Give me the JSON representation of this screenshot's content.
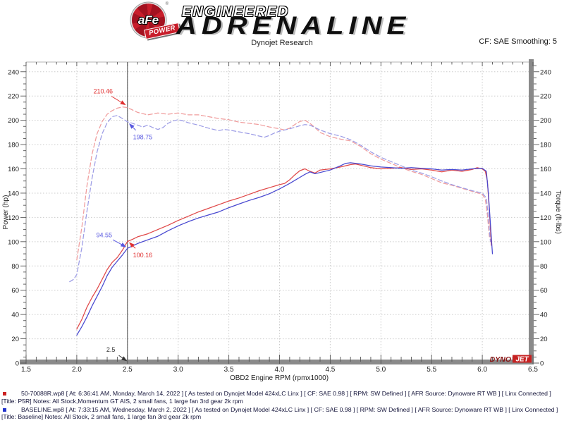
{
  "header": {
    "logo": {
      "circle_text": "aFe",
      "registered": "®",
      "banner_text": "POWER"
    },
    "title_line1": "ENGINEERED",
    "title_line2": "ADRENALINE",
    "subtitle": "Dynojet Research",
    "smoothing": "CF: SAE Smoothing: 5"
  },
  "chart_data": {
    "type": "line",
    "title": "",
    "xlabel": "OBD2 Engine RPM (rpmx1000)",
    "ylabel_left": "Power (hp)",
    "ylabel_right": "Torque (ft-lbs)",
    "xlim": [
      1.5,
      6.5
    ],
    "ylim": [
      0,
      248
    ],
    "x_tick_major": 0.5,
    "x_tick_minor": 0.1,
    "y_tick_major": 20,
    "y_tick_minor": 5,
    "grid": true,
    "legend_position": "bottom",
    "cursor_x": 2.5,
    "watermark_dyno": "DYNO",
    "watermark_jet": "JET",
    "series": [
      {
        "id": "p5r-torque",
        "name": "50-70088R (P5R) Torque",
        "axis": "torque",
        "color": "#f09d9d",
        "dashed": true,
        "points": [
          [
            2.0,
            85
          ],
          [
            2.05,
            112
          ],
          [
            2.1,
            146
          ],
          [
            2.15,
            172
          ],
          [
            2.2,
            189
          ],
          [
            2.25,
            199
          ],
          [
            2.3,
            205
          ],
          [
            2.35,
            208
          ],
          [
            2.4,
            210
          ],
          [
            2.45,
            211
          ],
          [
            2.5,
            210.46
          ],
          [
            2.55,
            208.5
          ],
          [
            2.6,
            206.5
          ],
          [
            2.7,
            204.5
          ],
          [
            2.8,
            206
          ],
          [
            2.9,
            205
          ],
          [
            3.0,
            206
          ],
          [
            3.1,
            204.5
          ],
          [
            3.2,
            204.5
          ],
          [
            3.3,
            203
          ],
          [
            3.4,
            201.5
          ],
          [
            3.5,
            200.5
          ],
          [
            3.6,
            198.5
          ],
          [
            3.7,
            197.5
          ],
          [
            3.8,
            196.5
          ],
          [
            3.9,
            194.5
          ],
          [
            4.0,
            193
          ],
          [
            4.05,
            192
          ],
          [
            4.1,
            193.5
          ],
          [
            4.15,
            196.5
          ],
          [
            4.2,
            199
          ],
          [
            4.25,
            200
          ],
          [
            4.3,
            197.5
          ],
          [
            4.35,
            194
          ],
          [
            4.4,
            190
          ],
          [
            4.5,
            186.5
          ],
          [
            4.6,
            184.5
          ],
          [
            4.7,
            183
          ],
          [
            4.8,
            178.5
          ],
          [
            4.9,
            172.5
          ],
          [
            5.0,
            168
          ],
          [
            5.1,
            164.5
          ],
          [
            5.2,
            161
          ],
          [
            5.3,
            158
          ],
          [
            5.4,
            155.5
          ],
          [
            5.5,
            152
          ],
          [
            5.6,
            148.5
          ],
          [
            5.7,
            146.5
          ],
          [
            5.8,
            144
          ],
          [
            5.9,
            141.5
          ],
          [
            6.0,
            139
          ],
          [
            6.03,
            135
          ],
          [
            6.05,
            122
          ],
          [
            6.07,
            104
          ]
        ]
      },
      {
        "id": "baseline-torque",
        "name": "BASELINE Torque",
        "axis": "torque",
        "color": "#9d9de6",
        "dashed": true,
        "points": [
          [
            1.93,
            67
          ],
          [
            1.97,
            69
          ],
          [
            2.0,
            73
          ],
          [
            2.05,
            95
          ],
          [
            2.1,
            125
          ],
          [
            2.15,
            152
          ],
          [
            2.2,
            174
          ],
          [
            2.25,
            189
          ],
          [
            2.3,
            198
          ],
          [
            2.35,
            203
          ],
          [
            2.4,
            204
          ],
          [
            2.45,
            201.5
          ],
          [
            2.5,
            198.75
          ],
          [
            2.55,
            197.5
          ],
          [
            2.6,
            196
          ],
          [
            2.65,
            194.5
          ],
          [
            2.7,
            196
          ],
          [
            2.75,
            194
          ],
          [
            2.8,
            192.5
          ],
          [
            2.85,
            194
          ],
          [
            2.9,
            197.5
          ],
          [
            2.95,
            199.5
          ],
          [
            3.0,
            200.5
          ],
          [
            3.05,
            199.5
          ],
          [
            3.1,
            198
          ],
          [
            3.2,
            196
          ],
          [
            3.3,
            193.5
          ],
          [
            3.4,
            191.5
          ],
          [
            3.45,
            192.5
          ],
          [
            3.5,
            192
          ],
          [
            3.6,
            190.5
          ],
          [
            3.7,
            189
          ],
          [
            3.8,
            187
          ],
          [
            3.85,
            186
          ],
          [
            3.9,
            187.5
          ],
          [
            3.95,
            189.5
          ],
          [
            4.0,
            191
          ],
          [
            4.1,
            193
          ],
          [
            4.2,
            195.5
          ],
          [
            4.25,
            196.5
          ],
          [
            4.3,
            196
          ],
          [
            4.4,
            192
          ],
          [
            4.5,
            189
          ],
          [
            4.6,
            187
          ],
          [
            4.7,
            184
          ],
          [
            4.8,
            179.5
          ],
          [
            4.9,
            174
          ],
          [
            5.0,
            169.5
          ],
          [
            5.1,
            166
          ],
          [
            5.2,
            162.5
          ],
          [
            5.3,
            159
          ],
          [
            5.4,
            156.5
          ],
          [
            5.5,
            153.5
          ],
          [
            5.6,
            150
          ],
          [
            5.7,
            147
          ],
          [
            5.8,
            144.5
          ],
          [
            5.9,
            142
          ],
          [
            6.0,
            140
          ],
          [
            6.04,
            136
          ],
          [
            6.06,
            120
          ],
          [
            6.08,
            100
          ]
        ]
      },
      {
        "id": "p5r-power",
        "name": "50-70088R (P5R) Power",
        "axis": "power",
        "color": "#e04848",
        "dashed": false,
        "points": [
          [
            2.0,
            28
          ],
          [
            2.05,
            36
          ],
          [
            2.1,
            46
          ],
          [
            2.15,
            54
          ],
          [
            2.2,
            61
          ],
          [
            2.25,
            69
          ],
          [
            2.3,
            77
          ],
          [
            2.35,
            83
          ],
          [
            2.4,
            87
          ],
          [
            2.45,
            93
          ],
          [
            2.5,
            100.16
          ],
          [
            2.55,
            102
          ],
          [
            2.6,
            104
          ],
          [
            2.7,
            106.5
          ],
          [
            2.8,
            110
          ],
          [
            2.9,
            113.5
          ],
          [
            3.0,
            117.5
          ],
          [
            3.1,
            121
          ],
          [
            3.2,
            124.5
          ],
          [
            3.3,
            127.5
          ],
          [
            3.4,
            130.5
          ],
          [
            3.5,
            133.5
          ],
          [
            3.6,
            136
          ],
          [
            3.7,
            139
          ],
          [
            3.8,
            142
          ],
          [
            3.9,
            144.5
          ],
          [
            4.0,
            147
          ],
          [
            4.05,
            148
          ],
          [
            4.1,
            151
          ],
          [
            4.15,
            155
          ],
          [
            4.2,
            158.5
          ],
          [
            4.25,
            160
          ],
          [
            4.3,
            158
          ],
          [
            4.35,
            156.5
          ],
          [
            4.4,
            159
          ],
          [
            4.5,
            160
          ],
          [
            4.6,
            161.5
          ],
          [
            4.7,
            163.5
          ],
          [
            4.75,
            164
          ],
          [
            4.8,
            163
          ],
          [
            4.9,
            161
          ],
          [
            5.0,
            160
          ],
          [
            5.1,
            160.5
          ],
          [
            5.2,
            161
          ],
          [
            5.3,
            159.5
          ],
          [
            5.4,
            160
          ],
          [
            5.5,
            159
          ],
          [
            5.6,
            157.5
          ],
          [
            5.7,
            159
          ],
          [
            5.8,
            158
          ],
          [
            5.9,
            159.5
          ],
          [
            5.95,
            161
          ],
          [
            6.0,
            160
          ],
          [
            6.03,
            158
          ],
          [
            6.05,
            150
          ],
          [
            6.07,
            125
          ],
          [
            6.09,
            97
          ]
        ]
      },
      {
        "id": "baseline-power",
        "name": "BASELINE Power",
        "axis": "power",
        "color": "#4848d0",
        "dashed": false,
        "points": [
          [
            2.0,
            23
          ],
          [
            2.05,
            30
          ],
          [
            2.1,
            38
          ],
          [
            2.15,
            47
          ],
          [
            2.2,
            55
          ],
          [
            2.25,
            63
          ],
          [
            2.3,
            72
          ],
          [
            2.35,
            79
          ],
          [
            2.4,
            84
          ],
          [
            2.45,
            89
          ],
          [
            2.5,
            94.55
          ],
          [
            2.55,
            96.5
          ],
          [
            2.6,
            98.5
          ],
          [
            2.7,
            101.5
          ],
          [
            2.8,
            104.5
          ],
          [
            2.9,
            109
          ],
          [
            3.0,
            113
          ],
          [
            3.1,
            116.5
          ],
          [
            3.2,
            119.5
          ],
          [
            3.3,
            122
          ],
          [
            3.4,
            124.5
          ],
          [
            3.5,
            128
          ],
          [
            3.6,
            131
          ],
          [
            3.7,
            134
          ],
          [
            3.8,
            136.5
          ],
          [
            3.9,
            139.5
          ],
          [
            4.0,
            143.5
          ],
          [
            4.1,
            148
          ],
          [
            4.2,
            153
          ],
          [
            4.25,
            155.5
          ],
          [
            4.3,
            157.5
          ],
          [
            4.35,
            156
          ],
          [
            4.4,
            157
          ],
          [
            4.5,
            159
          ],
          [
            4.6,
            162.5
          ],
          [
            4.65,
            164.5
          ],
          [
            4.7,
            165
          ],
          [
            4.8,
            164
          ],
          [
            4.9,
            162.5
          ],
          [
            5.0,
            161.5
          ],
          [
            5.1,
            161
          ],
          [
            5.2,
            160.5
          ],
          [
            5.3,
            161
          ],
          [
            5.4,
            160.5
          ],
          [
            5.5,
            160
          ],
          [
            5.6,
            159
          ],
          [
            5.7,
            159.5
          ],
          [
            5.8,
            159
          ],
          [
            5.9,
            160
          ],
          [
            6.0,
            160.5
          ],
          [
            6.04,
            158
          ],
          [
            6.06,
            140
          ],
          [
            6.08,
            115
          ],
          [
            6.1,
            90
          ]
        ]
      }
    ],
    "annotations": [
      {
        "text": "210.46",
        "color": "#e03030",
        "label_x": 2.26,
        "label_y": 224,
        "tip_x": 2.485,
        "tip_y": 212.5
      },
      {
        "text": "198.75",
        "color": "#5858e0",
        "label_x": 2.65,
        "label_y": 186,
        "tip_x": 2.515,
        "tip_y": 197.5
      },
      {
        "text": "94.55",
        "color": "#5858e0",
        "label_x": 2.27,
        "label_y": 105.5,
        "tip_x": 2.49,
        "tip_y": 95.5
      },
      {
        "text": "100.16",
        "color": "#e03030",
        "label_x": 2.65,
        "label_y": 89,
        "tip_x": 2.515,
        "tip_y": 99.5
      },
      {
        "text": "2.5",
        "color": "#333333",
        "label_x": 2.335,
        "label_y": 11,
        "tip_x": 2.497,
        "tip_y": 1.5
      }
    ]
  },
  "legend": {
    "entries": [
      {
        "marker_color": "#cc2222",
        "text": "50-70088R.wp8 [ At: 6:36:41 AM, Monday, March 14, 2022 ] [ As tested on Dynojet Model 424xLC Linx ] [ CF: SAE 0.98 ] [ RPM: SW Defined ] [ AFR Source: Dynoware RT WB ] [ Linx Connected ] [Title: P5R]  Notes: All Stock,Momentum GT AIS, 2 small fans, 1 large fan 3rd gear 2k rpm"
      },
      {
        "marker_color": "#2233cc",
        "text": "BASELINE.wp8 [ At: 7:33:15 AM, Wednesday, March 2, 2022 ] [ As tested on Dynojet Model 424xLC Linx ] [ CF: SAE 0.98 ] [ RPM: SW Defined ] [ AFR Source: Dynoware RT WB ] [ Linx Connected ] [Title: Baseline]  Notes: All Stock, 2 small fans, 1 large fan 3rd gear 2k rpm"
      }
    ]
  }
}
